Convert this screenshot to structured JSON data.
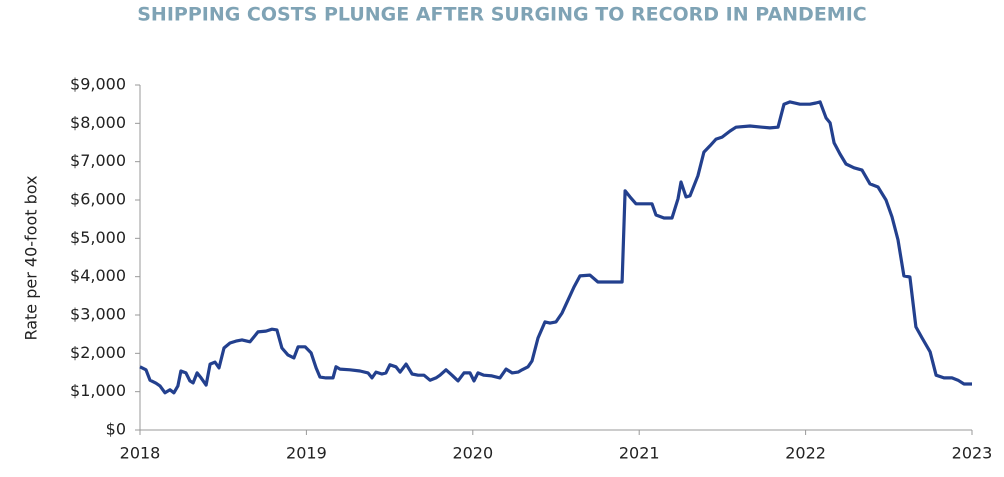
{
  "chart_data": {
    "type": "line",
    "title": "SHIPPING COSTS PLUNGE AFTER SURGING TO RECORD IN PANDEMIC",
    "y_label": "Rate per 40-foot box",
    "xlim": [
      2018,
      2023
    ],
    "xticks": [
      2018,
      2019,
      2020,
      2021,
      2022,
      2023
    ],
    "ylim": [
      0,
      9000
    ],
    "yticks": [
      {
        "value": 0,
        "label": "$0"
      },
      {
        "value": 1000,
        "label": "$1,000"
      },
      {
        "value": 2000,
        "label": "$2,000"
      },
      {
        "value": 3000,
        "label": "$3,000"
      },
      {
        "value": 4000,
        "label": "$4,000"
      },
      {
        "value": 5000,
        "label": "$5,000"
      },
      {
        "value": 6000,
        "label": "$6,000"
      },
      {
        "value": 7000,
        "label": "$7,000"
      },
      {
        "value": 8000,
        "label": "$8,000"
      },
      {
        "value": 9000,
        "label": "$9,000"
      }
    ],
    "x": [
      2018.0,
      2018.036,
      2018.06,
      2018.096,
      2018.12,
      2018.15,
      2018.18,
      2018.204,
      2018.228,
      2018.246,
      2018.276,
      2018.3,
      2018.319,
      2018.343,
      2018.367,
      2018.397,
      2018.421,
      2018.451,
      2018.475,
      2018.505,
      2018.541,
      2018.577,
      2018.613,
      2018.661,
      2018.709,
      2018.757,
      2018.793,
      2018.823,
      2018.853,
      2018.889,
      2018.925,
      2018.95,
      2018.992,
      2019.028,
      2019.058,
      2019.082,
      2019.118,
      2019.16,
      2019.178,
      2019.202,
      2019.262,
      2019.322,
      2019.37,
      2019.394,
      2019.418,
      2019.454,
      2019.478,
      2019.502,
      2019.538,
      2019.563,
      2019.599,
      2019.635,
      2019.671,
      2019.707,
      2019.743,
      2019.779,
      2019.803,
      2019.839,
      2019.875,
      2019.911,
      2019.947,
      2019.983,
      2020.007,
      2020.031,
      2020.067,
      2020.115,
      2020.163,
      2020.2,
      2020.236,
      2020.272,
      2020.296,
      2020.332,
      2020.356,
      2020.392,
      2020.434,
      2020.464,
      2020.5,
      2020.536,
      2020.572,
      2020.608,
      2020.644,
      2020.704,
      2020.752,
      2020.837,
      2020.897,
      2020.915,
      2020.945,
      2020.981,
      2021.041,
      2021.077,
      2021.101,
      2021.149,
      2021.197,
      2021.233,
      2021.251,
      2021.281,
      2021.305,
      2021.353,
      2021.389,
      2021.425,
      2021.462,
      2021.498,
      2021.546,
      2021.582,
      2021.666,
      2021.738,
      2021.786,
      2021.834,
      2021.87,
      2021.906,
      2021.966,
      2022.026,
      2022.062,
      2022.087,
      2022.123,
      2022.147,
      2022.171,
      2022.207,
      2022.243,
      2022.291,
      2022.339,
      2022.387,
      2022.435,
      2022.483,
      2022.519,
      2022.555,
      2022.591,
      2022.627,
      2022.663,
      2022.7,
      2022.748,
      2022.784,
      2022.832,
      2022.88,
      2022.916,
      2022.952,
      2023.0
    ],
    "series": [
      {
        "color": "#23408e",
        "values": [
          1650,
          1570,
          1300,
          1220,
          1150,
          970,
          1050,
          970,
          1150,
          1540,
          1490,
          1280,
          1230,
          1490,
          1360,
          1170,
          1720,
          1770,
          1620,
          2140,
          2270,
          2320,
          2350,
          2300,
          2560,
          2580,
          2630,
          2610,
          2140,
          1960,
          1880,
          2170,
          2170,
          2010,
          1620,
          1380,
          1360,
          1360,
          1650,
          1590,
          1570,
          1540,
          1490,
          1360,
          1510,
          1460,
          1490,
          1700,
          1650,
          1510,
          1720,
          1460,
          1430,
          1430,
          1300,
          1360,
          1430,
          1570,
          1430,
          1280,
          1490,
          1490,
          1280,
          1490,
          1430,
          1410,
          1360,
          1590,
          1490,
          1510,
          1570,
          1650,
          1800,
          2400,
          2820,
          2790,
          2820,
          3050,
          3390,
          3730,
          4020,
          4040,
          3860,
          3860,
          3860,
          6240,
          6080,
          5900,
          5900,
          5900,
          5610,
          5530,
          5530,
          6030,
          6470,
          6080,
          6110,
          6630,
          7250,
          7410,
          7590,
          7640,
          7800,
          7900,
          7930,
          7900,
          7880,
          7900,
          8500,
          8560,
          8500,
          8500,
          8530,
          8560,
          8140,
          8010,
          7490,
          7200,
          6940,
          6840,
          6780,
          6420,
          6340,
          6000,
          5560,
          4960,
          4020,
          3990,
          2690,
          2400,
          2040,
          1430,
          1360,
          1360,
          1300,
          1200,
          1200
        ]
      }
    ]
  }
}
